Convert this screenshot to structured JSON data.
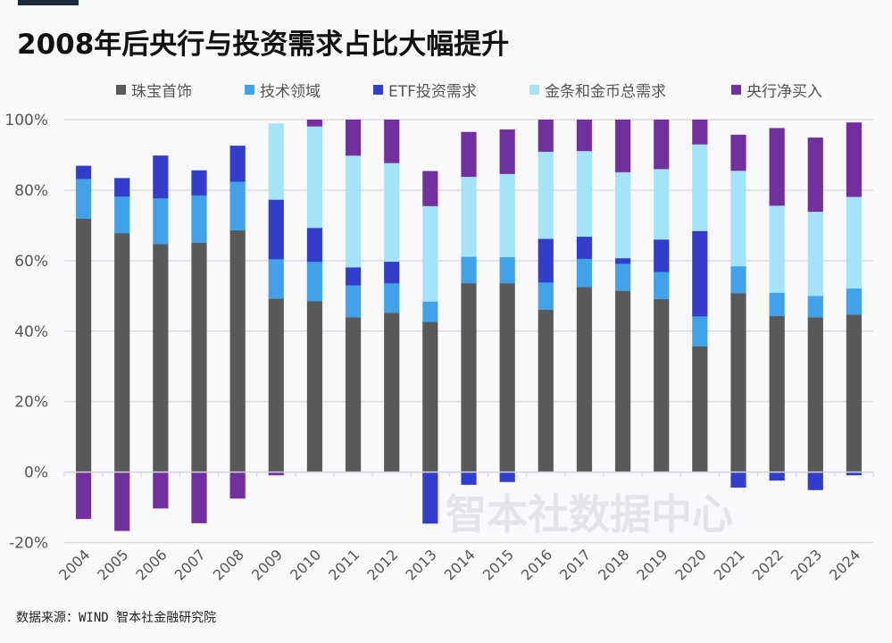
{
  "header": {
    "title": "2008年后央行与投资需求占比大幅提升"
  },
  "footer": {
    "source": "数据来源：WIND 智本社金融研究院"
  },
  "watermark": "智本社数据中心",
  "chart_data": {
    "type": "bar",
    "stacked": true,
    "title": "2008年后央行与投资需求占比大幅提升",
    "xlabel": "",
    "ylabel": "",
    "ylim": [
      -20,
      100
    ],
    "yticks": [
      -20,
      0,
      20,
      40,
      60,
      80,
      100
    ],
    "ytick_labels": [
      "-20%",
      "0%",
      "20%",
      "40%",
      "60%",
      "80%",
      "100%"
    ],
    "grid": true,
    "legend_position": "top",
    "categories": [
      "2004",
      "2005",
      "2006",
      "2007",
      "2008",
      "2009",
      "2010",
      "2011",
      "2012",
      "2013",
      "2014",
      "2015",
      "2016",
      "2017",
      "2018",
      "2019",
      "2020",
      "2021",
      "2022",
      "2023",
      "2024"
    ],
    "series": [
      {
        "name": "珠宝首饰",
        "color": "#595959",
        "values": [
          71.9,
          67.8,
          64.7,
          65.1,
          68.6,
          49.2,
          48.5,
          43.9,
          45.2,
          42.6,
          53.6,
          53.6,
          46.1,
          52.5,
          51.4,
          49.1,
          35.7,
          50.8,
          44.3,
          43.9,
          44.7
        ]
      },
      {
        "name": "技术领域",
        "color": "#41a2ea",
        "values": [
          11.3,
          10.4,
          13.0,
          13.4,
          13.8,
          11.2,
          11.2,
          9.1,
          8.4,
          5.8,
          7.5,
          7.4,
          7.7,
          8.0,
          7.7,
          7.7,
          8.5,
          7.6,
          6.6,
          6.1,
          7.4
        ]
      },
      {
        "name": "ETF投资需求",
        "color": "#323ecb",
        "values": [
          3.7,
          5.2,
          12.1,
          7.1,
          10.2,
          16.9,
          9.6,
          5.1,
          6.1,
          -14.6,
          -3.6,
          -2.8,
          12.4,
          6.3,
          1.6,
          9.2,
          24.2,
          -4.4,
          -2.4,
          -5.1,
          -0.9
        ]
      },
      {
        "name": "金条和金币总需求",
        "color": "#a4e4fa",
        "values": [
          0,
          0,
          0,
          0,
          0,
          21.6,
          28.8,
          31.7,
          28.0,
          27.1,
          22.7,
          23.6,
          24.7,
          24.3,
          24.4,
          20.0,
          24.6,
          27.1,
          24.7,
          23.9,
          26.0
        ]
      },
      {
        "name": "央行净买入",
        "color": "#722f9e",
        "values": [
          -13.3,
          -16.7,
          -10.3,
          -14.5,
          -7.5,
          -0.9,
          1.9,
          10.2,
          12.3,
          9.9,
          12.7,
          12.6,
          9.1,
          8.9,
          14.9,
          14.0,
          7.0,
          10.2,
          22.0,
          21.0,
          21.1
        ]
      }
    ]
  }
}
